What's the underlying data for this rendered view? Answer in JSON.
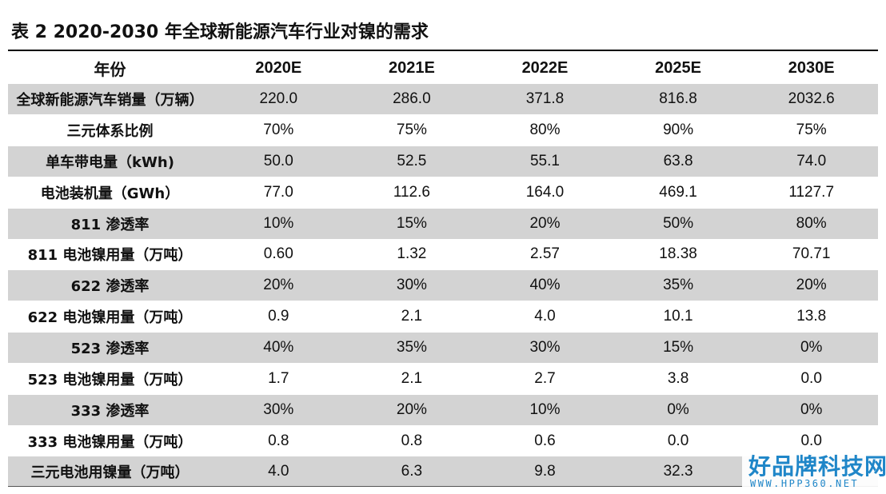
{
  "title": "表 2 2020-2030 年全球新能源汽车行业对镍的需求",
  "table": {
    "headers": [
      "年份",
      "2020E",
      "2021E",
      "2022E",
      "2025E",
      "2030E"
    ],
    "rows": [
      {
        "label": "全球新能源汽车销量（万辆）",
        "values": [
          "220.0",
          "286.0",
          "371.8",
          "816.8",
          "2032.6"
        ]
      },
      {
        "label": "三元体系比例",
        "values": [
          "70%",
          "75%",
          "80%",
          "90%",
          "75%"
        ]
      },
      {
        "label": "单车带电量（kWh)",
        "values": [
          "50.0",
          "52.5",
          "55.1",
          "63.8",
          "74.0"
        ]
      },
      {
        "label": "电池装机量（GWh）",
        "values": [
          "77.0",
          "112.6",
          "164.0",
          "469.1",
          "1127.7"
        ]
      },
      {
        "label": "811 渗透率",
        "values": [
          "10%",
          "15%",
          "20%",
          "50%",
          "80%"
        ]
      },
      {
        "label": "811 电池镍用量（万吨）",
        "values": [
          "0.60",
          "1.32",
          "2.57",
          "18.38",
          "70.71"
        ]
      },
      {
        "label": "622 渗透率",
        "values": [
          "20%",
          "30%",
          "40%",
          "35%",
          "20%"
        ]
      },
      {
        "label": "622 电池镍用量（万吨）",
        "values": [
          "0.9",
          "2.1",
          "4.0",
          "10.1",
          "13.8"
        ]
      },
      {
        "label": "523 渗透率",
        "values": [
          "40%",
          "35%",
          "30%",
          "15%",
          "0%"
        ]
      },
      {
        "label": "523 电池镍用量（万吨）",
        "values": [
          "1.7",
          "2.1",
          "2.7",
          "3.8",
          "0.0"
        ]
      },
      {
        "label": "333 渗透率",
        "values": [
          "30%",
          "20%",
          "10%",
          "0%",
          "0%"
        ]
      },
      {
        "label": "333 电池镍用量（万吨）",
        "values": [
          "0.8",
          "0.8",
          "0.6",
          "0.0",
          "0.0"
        ]
      },
      {
        "label": "三元电池用镍量（万吨）",
        "values": [
          "4.0",
          "6.3",
          "9.8",
          "32.3",
          ""
        ]
      }
    ]
  },
  "watermark": {
    "main": "好品牌科技网",
    "sub": "WWW.HPP360.NET",
    "color": "#1f86c8"
  }
}
